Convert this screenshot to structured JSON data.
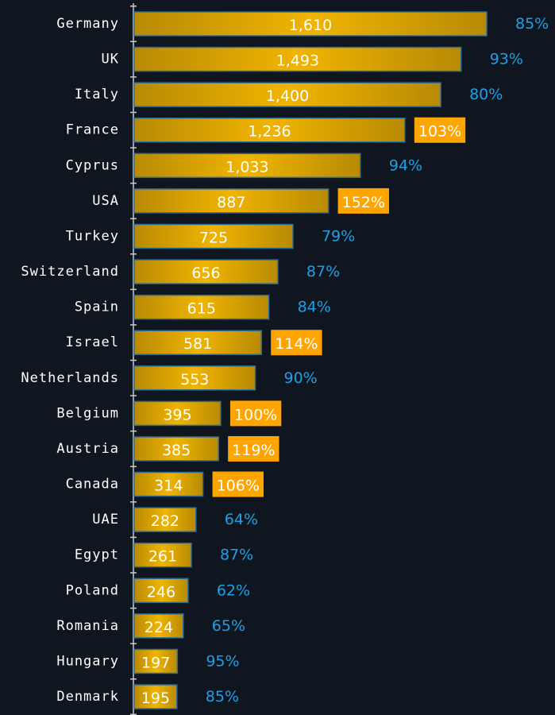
{
  "chart_data": {
    "type": "bar",
    "orientation": "horizontal",
    "categories": [
      "Germany",
      "UK",
      "Italy",
      "France",
      "Cyprus",
      "USA",
      "Turkey",
      "Switzerland",
      "Spain",
      "Israel",
      "Netherlands",
      "Belgium",
      "Austria",
      "Canada",
      "UAE",
      "Egypt",
      "Poland",
      "Romania",
      "Hungary",
      "Denmark"
    ],
    "values": [
      1610,
      1493,
      1400,
      1236,
      1033,
      887,
      725,
      656,
      615,
      581,
      553,
      395,
      385,
      314,
      282,
      261,
      246,
      224,
      197,
      195
    ],
    "value_labels": [
      "1,610",
      "1,493",
      "1,400",
      "1,236",
      "1,033",
      "887",
      "725",
      "656",
      "615",
      "581",
      "553",
      "395",
      "385",
      "314",
      "282",
      "261",
      "246",
      "224",
      "197",
      "195"
    ],
    "color": "#e0a800",
    "percent_values": [
      85,
      93,
      80,
      103,
      94,
      152,
      79,
      87,
      84,
      114,
      90,
      100,
      119,
      106,
      64,
      87,
      62,
      65,
      95,
      85
    ],
    "percent_labels": [
      "85%",
      "93%",
      "80%",
      "103%",
      "94%",
      "152%",
      "79%",
      "87%",
      "84%",
      "114%",
      "90%",
      "100%",
      "119%",
      "106%",
      "64%",
      "87%",
      "62%",
      "65%",
      "95%",
      "85%"
    ],
    "percent_color": "#1ea0e6",
    "highlight_color": "#ffa500"
  }
}
